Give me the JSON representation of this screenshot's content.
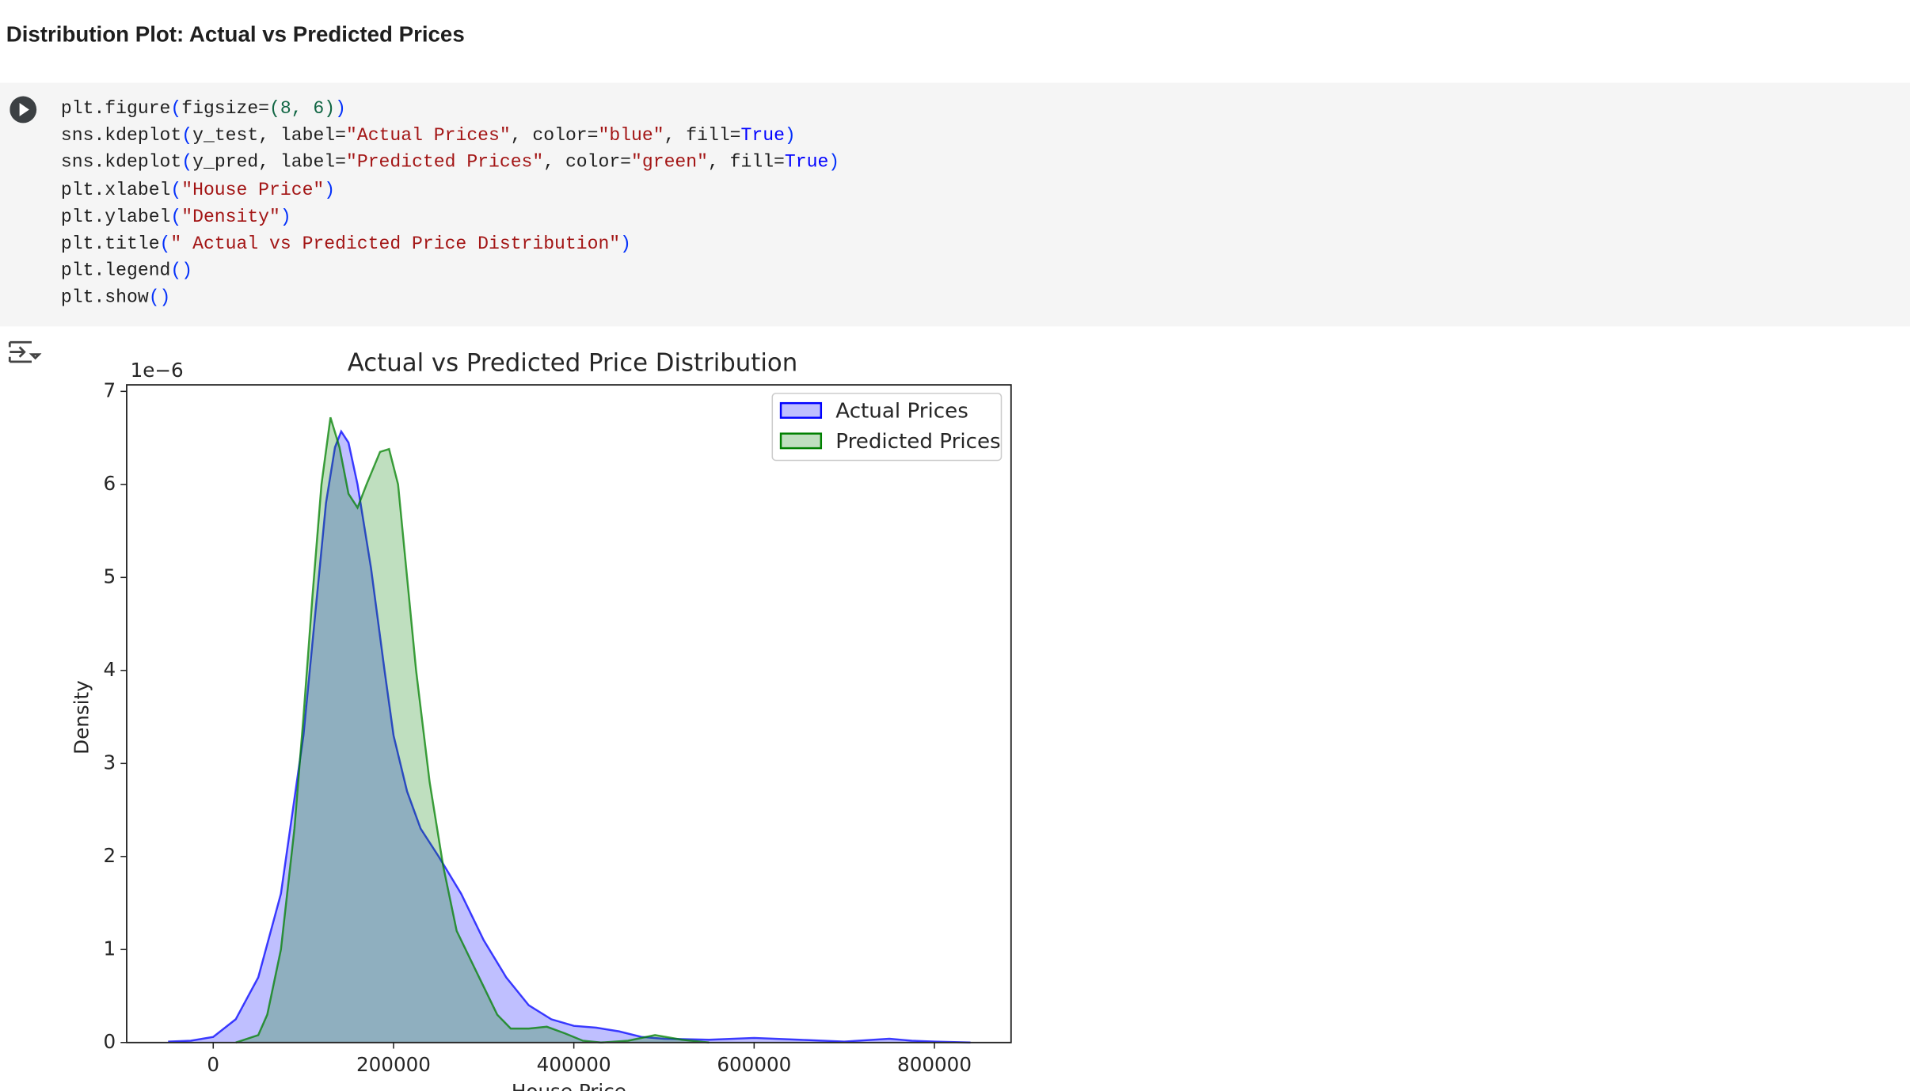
{
  "header": {
    "title": "Distribution Plot: Actual vs Predicted Prices"
  },
  "code": {
    "lines": [
      [
        {
          "text": "plt.figure",
          "color": "#212121"
        },
        {
          "text": "(",
          "color": "#0431fa"
        },
        {
          "text": "figsize=",
          "color": "#212121"
        },
        {
          "text": "(8, 6)",
          "color": "#116644"
        },
        {
          "text": ")",
          "color": "#0431fa"
        }
      ],
      [
        {
          "text": "sns.kdeplot",
          "color": "#212121"
        },
        {
          "text": "(",
          "color": "#0431fa"
        },
        {
          "text": "y_test, label=",
          "color": "#212121"
        },
        {
          "text": "\"Actual Prices\"",
          "color": "#a31515"
        },
        {
          "text": ", color=",
          "color": "#212121"
        },
        {
          "text": "\"blue\"",
          "color": "#a31515"
        },
        {
          "text": ", fill=",
          "color": "#212121"
        },
        {
          "text": "True",
          "color": "#0000ff"
        },
        {
          "text": ")",
          "color": "#0431fa"
        }
      ],
      [
        {
          "text": "sns.kdeplot",
          "color": "#212121"
        },
        {
          "text": "(",
          "color": "#0431fa"
        },
        {
          "text": "y_pred, label=",
          "color": "#212121"
        },
        {
          "text": "\"Predicted Prices\"",
          "color": "#a31515"
        },
        {
          "text": ", color=",
          "color": "#212121"
        },
        {
          "text": "\"green\"",
          "color": "#a31515"
        },
        {
          "text": ", fill=",
          "color": "#212121"
        },
        {
          "text": "True",
          "color": "#0000ff"
        },
        {
          "text": ")",
          "color": "#0431fa"
        }
      ],
      [
        {
          "text": "plt.xlabel",
          "color": "#212121"
        },
        {
          "text": "(",
          "color": "#0431fa"
        },
        {
          "text": "\"House Price\"",
          "color": "#a31515"
        },
        {
          "text": ")",
          "color": "#0431fa"
        }
      ],
      [
        {
          "text": "plt.ylabel",
          "color": "#212121"
        },
        {
          "text": "(",
          "color": "#0431fa"
        },
        {
          "text": "\"Density\"",
          "color": "#a31515"
        },
        {
          "text": ")",
          "color": "#0431fa"
        }
      ],
      [
        {
          "text": "plt.title",
          "color": "#212121"
        },
        {
          "text": "(",
          "color": "#0431fa"
        },
        {
          "text": "\" Actual vs Predicted Price Distribution\"",
          "color": "#a31515"
        },
        {
          "text": ")",
          "color": "#0431fa"
        }
      ],
      [
        {
          "text": "plt.legend",
          "color": "#212121"
        },
        {
          "text": "()",
          "color": "#0431fa"
        }
      ],
      [
        {
          "text": "plt.show",
          "color": "#212121"
        },
        {
          "text": "()",
          "color": "#0431fa"
        }
      ]
    ]
  },
  "chart_data": {
    "type": "area",
    "title": "Actual vs Predicted Price Distribution",
    "x_label": "House Price",
    "y_label": "Density",
    "y_offset_label": "1e−6",
    "xlim": [
      -96000,
      885000
    ],
    "ylim": [
      0,
      7.07
    ],
    "xticks": [
      0,
      200000,
      400000,
      600000,
      800000
    ],
    "yticks": [
      0,
      1,
      2,
      3,
      4,
      5,
      6,
      7
    ],
    "legend": "upper right",
    "fill_opacity": 0.25,
    "series": [
      {
        "name": "Actual Prices",
        "color": "blue",
        "x": [
          -50000,
          -25000,
          0,
          25000,
          50000,
          75000,
          100000,
          115000,
          125000,
          135000,
          142000,
          150000,
          160000,
          175000,
          190000,
          200000,
          215000,
          230000,
          250000,
          275000,
          300000,
          325000,
          350000,
          375000,
          400000,
          425000,
          450000,
          475000,
          500000,
          550000,
          600000,
          650000,
          700000,
          750000,
          775000,
          800000,
          840000
        ],
        "values": [
          0.01,
          0.02,
          0.06,
          0.25,
          0.7,
          1.6,
          3.3,
          4.8,
          5.8,
          6.4,
          6.57,
          6.45,
          6.0,
          5.1,
          4.0,
          3.3,
          2.7,
          2.3,
          2.0,
          1.6,
          1.1,
          0.7,
          0.4,
          0.25,
          0.18,
          0.16,
          0.12,
          0.06,
          0.04,
          0.03,
          0.05,
          0.03,
          0.01,
          0.04,
          0.02,
          0.01,
          0.0
        ]
      },
      {
        "name": "Predicted Prices",
        "color": "green",
        "x": [
          25000,
          50000,
          60000,
          75000,
          90000,
          100000,
          110000,
          120000,
          130000,
          140000,
          150000,
          160000,
          170000,
          185000,
          195000,
          205000,
          215000,
          225000,
          240000,
          255000,
          270000,
          285000,
          300000,
          315000,
          330000,
          350000,
          370000,
          390000,
          410000,
          430000,
          460000,
          490000,
          520000,
          550000
        ],
        "values": [
          0.0,
          0.08,
          0.3,
          1.0,
          2.3,
          3.5,
          4.8,
          6.0,
          6.72,
          6.4,
          5.9,
          5.75,
          6.0,
          6.35,
          6.38,
          6.0,
          5.0,
          4.0,
          2.8,
          1.9,
          1.2,
          0.9,
          0.6,
          0.3,
          0.15,
          0.15,
          0.17,
          0.1,
          0.02,
          0.0,
          0.02,
          0.08,
          0.03,
          0.0
        ]
      }
    ]
  }
}
